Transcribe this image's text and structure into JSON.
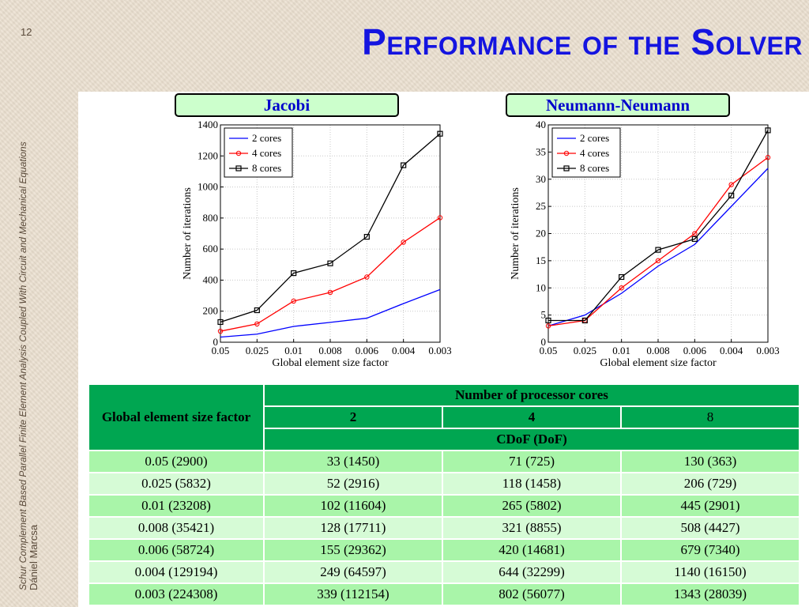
{
  "slide": {
    "number": "12",
    "title": "Performance of the Solver",
    "side_subtitle": "Schur Complement Based Parallel Finite Element Analysis Coupled With Circuit and Mechanical Equations",
    "side_author": "Dániel Marcsa"
  },
  "charts": {
    "left_header": "Jacobi",
    "right_header": "Neumann-Neumann"
  },
  "chart_data": [
    {
      "type": "line",
      "title": "Jacobi",
      "xlabel": "Global element size factor",
      "ylabel": "Number of iterations",
      "x": [
        "0.05",
        "0.025",
        "0.01",
        "0.008",
        "0.006",
        "0.004",
        "0.003"
      ],
      "ylim": [
        0,
        1400
      ],
      "yticks": [
        0,
        200,
        400,
        600,
        800,
        1000,
        1200,
        1400
      ],
      "grid": true,
      "legend_position": "top-left",
      "series": [
        {
          "name": "2 cores",
          "values": [
            33,
            52,
            102,
            128,
            155,
            249,
            339
          ],
          "color": "#0000ff",
          "marker": "none"
        },
        {
          "name": "4 cores",
          "values": [
            71,
            118,
            265,
            321,
            420,
            644,
            802
          ],
          "color": "#ff0000",
          "marker": "circle"
        },
        {
          "name": "8 cores",
          "values": [
            130,
            206,
            445,
            508,
            679,
            1140,
            1343
          ],
          "color": "#000000",
          "marker": "square"
        }
      ]
    },
    {
      "type": "line",
      "title": "Neumann-Neumann",
      "xlabel": "Global element size factor",
      "ylabel": "Number of iterations",
      "x": [
        "0.05",
        "0.025",
        "0.01",
        "0.008",
        "0.006",
        "0.004",
        "0.003"
      ],
      "ylim": [
        0,
        40
      ],
      "yticks": [
        0,
        5,
        10,
        15,
        20,
        25,
        30,
        35,
        40
      ],
      "grid": true,
      "legend_position": "top-left",
      "series": [
        {
          "name": "2 cores",
          "values": [
            3,
            5,
            9,
            14,
            18,
            25,
            32
          ],
          "color": "#0000ff",
          "marker": "none"
        },
        {
          "name": "4 cores",
          "values": [
            3,
            4,
            10,
            15,
            20,
            29,
            34
          ],
          "color": "#ff0000",
          "marker": "circle"
        },
        {
          "name": "8 cores",
          "values": [
            4,
            4,
            12,
            17,
            19,
            27,
            39
          ],
          "color": "#000000",
          "marker": "square"
        }
      ]
    }
  ],
  "table": {
    "corner_header": "Global element size factor",
    "group_header": "Number of processor cores",
    "cores": [
      "2",
      "4",
      "8"
    ],
    "subheader": "CDoF (DoF)",
    "rows": [
      [
        "0.05 (2900)",
        "33 (1450)",
        "71 (725)",
        "130 (363)"
      ],
      [
        "0.025 (5832)",
        "52 (2916)",
        "118 (1458)",
        "206 (729)"
      ],
      [
        "0.01 (23208)",
        "102 (11604)",
        "265 (5802)",
        "445 (2901)"
      ],
      [
        "0.008 (35421)",
        "128 (17711)",
        "321 (8855)",
        "508 (4427)"
      ],
      [
        "0.006 (58724)",
        "155 (29362)",
        "420 (14681)",
        "679 (7340)"
      ],
      [
        "0.004 (129194)",
        "249 (64597)",
        "644 (32299)",
        "1140 (16150)"
      ],
      [
        "0.003 (224308)",
        "339 (112154)",
        "802 (56077)",
        "1343 (28039)"
      ]
    ]
  }
}
